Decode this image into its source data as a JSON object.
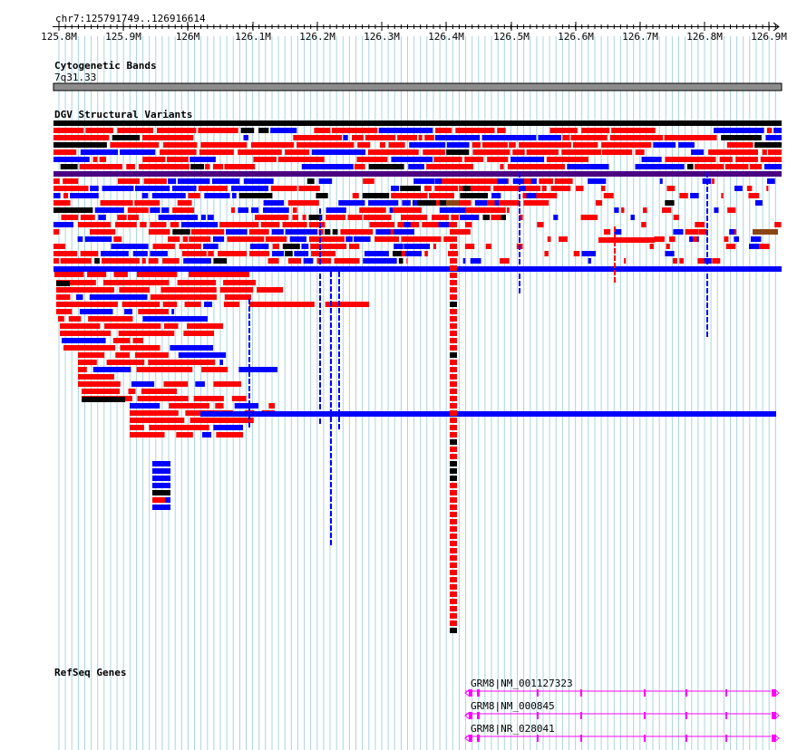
{
  "location": "chr7:125791749..126916614",
  "ruler": {
    "ticks": [
      "125.8M",
      "125.9M",
      "126M",
      "126.1M",
      "126.2M",
      "126.3M",
      "126.4M",
      "126.5M",
      "126.6M",
      "126.7M",
      "126.8M",
      "126.9M"
    ]
  },
  "tracks": {
    "cytoband": {
      "title": "Cytogenetic Bands",
      "band": "7q31.33"
    },
    "dgv": {
      "title": "DGV Structural Variants"
    },
    "refseq": {
      "title": "RefSeq Genes",
      "genes": [
        {
          "label": "GRM8|NM_001127323"
        },
        {
          "label": "GRM8|NM_000845"
        },
        {
          "label": "GRM8|NR_028041"
        }
      ]
    }
  },
  "colors": {
    "grid": "#a8d4e0",
    "loss": "#ff0000",
    "gain": "#0000ff",
    "both": "#000000",
    "inversion": "#8b4513",
    "complex": "#4b0082",
    "gene": "#ff00ff"
  }
}
